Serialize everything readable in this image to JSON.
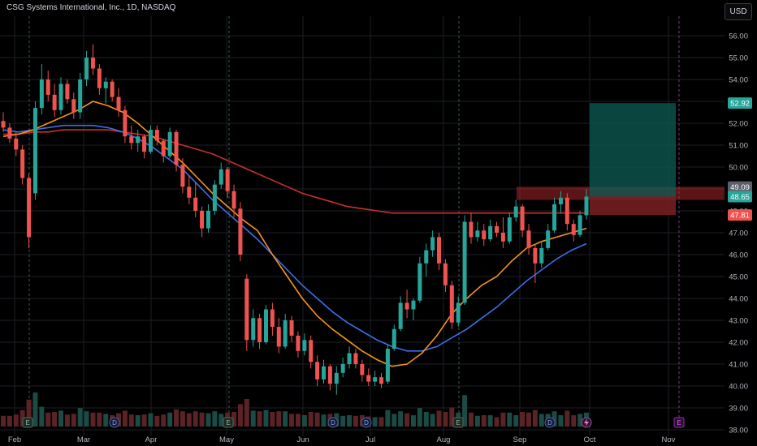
{
  "header": {
    "title": "CSG Systems International, Inc., 1D, NASDAQ",
    "currency": "USD"
  },
  "colors": {
    "background": "#000000",
    "up": "#26a69a",
    "down": "#ef5350",
    "ma_fast": "#f7931a",
    "ma_mid": "#3d6ee8",
    "ma_slow": "#c8312b",
    "grid": "#1c1f26",
    "target_zone": "#0e5c55",
    "stop_zone": "#7a2022"
  },
  "chart_data": {
    "type": "candlestick",
    "y_ticks": [
      "38.00",
      "39.00",
      "40.00",
      "41.00",
      "42.00",
      "43.00",
      "44.00",
      "45.00",
      "46.00",
      "47.00",
      "48.00",
      "49.00",
      "50.00",
      "51.00",
      "52.00",
      "53.00",
      "54.00",
      "55.00",
      "56.00"
    ],
    "ylim": [
      38.0,
      56.6
    ],
    "x_labels": [
      "Feb",
      "Mar",
      "Apr",
      "May",
      "Jun",
      "Jul",
      "Aug",
      "Sep",
      "Oct",
      "Nov"
    ],
    "price_labels": [
      {
        "text": "52.92",
        "value": 52.92,
        "color": "#26a69a"
      },
      {
        "text": "49.09",
        "value": 49.09,
        "color": "#5d606b"
      },
      {
        "text": "48.65",
        "value": 48.65,
        "color": "#26a69a"
      },
      {
        "text": "47.81",
        "value": 47.81,
        "color": "#ef5350"
      }
    ],
    "position_tool": {
      "entry": 48.65,
      "target": 52.92,
      "stop": 47.81
    },
    "resistance_zone": [
      48.5,
      49.1
    ],
    "events": [
      {
        "label": "E",
        "month": "Feb"
      },
      {
        "label": "D",
        "month": "Mar"
      },
      {
        "label": "E",
        "month": "May"
      },
      {
        "label": "D",
        "month": "Jun"
      },
      {
        "label": "D",
        "month": "Jun"
      },
      {
        "label": "E",
        "month": "Aug"
      },
      {
        "label": "D",
        "month": "Sep"
      },
      {
        "label": "E",
        "month": "Nov"
      }
    ],
    "volume_note": "volume histogram along bottom",
    "candles": [
      {
        "date": "Jan 22",
        "o": 52.1,
        "h": 52.5,
        "l": 51.6,
        "c": 51.8
      },
      {
        "date": "Jan 24",
        "o": 51.8,
        "h": 52.0,
        "l": 51.1,
        "c": 51.3
      },
      {
        "date": "Jan 26",
        "o": 51.3,
        "h": 51.6,
        "l": 50.5,
        "c": 50.8
      },
      {
        "date": "Jan 29",
        "o": 50.8,
        "h": 51.0,
        "l": 49.2,
        "c": 49.5
      },
      {
        "date": "Jan 31",
        "o": 49.5,
        "h": 49.7,
        "l": 46.3,
        "c": 46.8
      },
      {
        "date": "Feb 02",
        "o": 48.8,
        "h": 53.0,
        "l": 48.5,
        "c": 52.7
      },
      {
        "date": "Feb 05",
        "o": 52.7,
        "h": 54.7,
        "l": 52.4,
        "c": 54.0
      },
      {
        "date": "Feb 07",
        "o": 54.0,
        "h": 54.4,
        "l": 53.0,
        "c": 53.3
      },
      {
        "date": "Feb 09",
        "o": 53.3,
        "h": 53.8,
        "l": 52.3,
        "c": 52.6
      },
      {
        "date": "Feb 12",
        "o": 52.6,
        "h": 54.1,
        "l": 52.4,
        "c": 53.8
      },
      {
        "date": "Feb 14",
        "o": 53.8,
        "h": 54.0,
        "l": 52.9,
        "c": 53.1
      },
      {
        "date": "Feb 16",
        "o": 53.1,
        "h": 53.4,
        "l": 52.2,
        "c": 52.5
      },
      {
        "date": "Feb 20",
        "o": 52.5,
        "h": 54.3,
        "l": 52.2,
        "c": 54.0
      },
      {
        "date": "Feb 22",
        "o": 54.0,
        "h": 55.3,
        "l": 53.7,
        "c": 55.0
      },
      {
        "date": "Feb 26",
        "o": 55.0,
        "h": 55.6,
        "l": 54.2,
        "c": 54.5
      },
      {
        "date": "Feb 28",
        "o": 54.5,
        "h": 54.7,
        "l": 53.3,
        "c": 53.6
      },
      {
        "date": "Mar 01",
        "o": 53.6,
        "h": 54.1,
        "l": 52.9,
        "c": 53.9
      },
      {
        "date": "Mar 05",
        "o": 53.9,
        "h": 54.0,
        "l": 53.0,
        "c": 53.2
      },
      {
        "date": "Mar 07",
        "o": 53.2,
        "h": 53.6,
        "l": 52.3,
        "c": 52.6
      },
      {
        "date": "Mar 11",
        "o": 52.6,
        "h": 52.8,
        "l": 51.1,
        "c": 51.4
      },
      {
        "date": "Mar 13",
        "o": 51.4,
        "h": 51.9,
        "l": 50.8,
        "c": 51.1
      },
      {
        "date": "Mar 15",
        "o": 51.1,
        "h": 51.7,
        "l": 50.7,
        "c": 51.4
      },
      {
        "date": "Mar 19",
        "o": 51.4,
        "h": 51.5,
        "l": 50.4,
        "c": 50.7
      },
      {
        "date": "Mar 21",
        "o": 50.7,
        "h": 51.9,
        "l": 50.6,
        "c": 51.7
      },
      {
        "date": "Mar 25",
        "o": 51.7,
        "h": 51.9,
        "l": 51.0,
        "c": 51.2
      },
      {
        "date": "Mar 27",
        "o": 51.2,
        "h": 51.3,
        "l": 50.2,
        "c": 50.5
      },
      {
        "date": "Mar 29",
        "o": 50.5,
        "h": 51.8,
        "l": 50.4,
        "c": 51.6
      },
      {
        "date": "Apr 02",
        "o": 51.6,
        "h": 51.7,
        "l": 49.8,
        "c": 50.1
      },
      {
        "date": "Apr 04",
        "o": 50.1,
        "h": 50.4,
        "l": 48.8,
        "c": 49.1
      },
      {
        "date": "Apr 08",
        "o": 49.1,
        "h": 49.6,
        "l": 48.3,
        "c": 48.6
      },
      {
        "date": "Apr 10",
        "o": 48.6,
        "h": 49.3,
        "l": 47.7,
        "c": 48.0
      },
      {
        "date": "Apr 12",
        "o": 48.0,
        "h": 48.2,
        "l": 46.8,
        "c": 47.2
      },
      {
        "date": "Apr 16",
        "o": 47.2,
        "h": 48.3,
        "l": 47.0,
        "c": 48.0
      },
      {
        "date": "Apr 18",
        "o": 48.0,
        "h": 49.4,
        "l": 47.8,
        "c": 49.2
      },
      {
        "date": "Apr 22",
        "o": 49.2,
        "h": 50.2,
        "l": 49.0,
        "c": 49.9
      },
      {
        "date": "Apr 24",
        "o": 49.9,
        "h": 50.0,
        "l": 48.6,
        "c": 48.9
      },
      {
        "date": "Apr 26",
        "o": 48.9,
        "h": 49.2,
        "l": 47.7,
        "c": 48.1
      },
      {
        "date": "Apr 30",
        "o": 48.1,
        "h": 48.4,
        "l": 45.7,
        "c": 46.0
      },
      {
        "date": "May 02",
        "o": 44.9,
        "h": 45.1,
        "l": 41.6,
        "c": 42.1
      },
      {
        "date": "May 06",
        "o": 42.1,
        "h": 43.5,
        "l": 41.8,
        "c": 43.1
      },
      {
        "date": "May 08",
        "o": 43.1,
        "h": 43.3,
        "l": 41.7,
        "c": 42.0
      },
      {
        "date": "May 10",
        "o": 42.0,
        "h": 43.7,
        "l": 41.9,
        "c": 43.5
      },
      {
        "date": "May 14",
        "o": 43.5,
        "h": 43.8,
        "l": 42.3,
        "c": 42.7
      },
      {
        "date": "May 16",
        "o": 42.7,
        "h": 43.1,
        "l": 41.5,
        "c": 41.8
      },
      {
        "date": "May 20",
        "o": 41.8,
        "h": 43.3,
        "l": 41.7,
        "c": 43.0
      },
      {
        "date": "May 22",
        "o": 43.0,
        "h": 43.2,
        "l": 42.0,
        "c": 42.3
      },
      {
        "date": "May 24",
        "o": 42.3,
        "h": 42.5,
        "l": 41.3,
        "c": 41.6
      },
      {
        "date": "May 29",
        "o": 41.6,
        "h": 42.4,
        "l": 41.4,
        "c": 42.1
      },
      {
        "date": "May 31",
        "o": 42.1,
        "h": 42.3,
        "l": 40.8,
        "c": 41.1
      },
      {
        "date": "Jun 04",
        "o": 41.1,
        "h": 41.4,
        "l": 40.0,
        "c": 40.3
      },
      {
        "date": "Jun 06",
        "o": 40.3,
        "h": 41.2,
        "l": 40.1,
        "c": 40.9
      },
      {
        "date": "Jun 10",
        "o": 40.9,
        "h": 41.0,
        "l": 39.8,
        "c": 40.1
      },
      {
        "date": "Jun 12",
        "o": 40.1,
        "h": 40.9,
        "l": 39.6,
        "c": 40.6
      },
      {
        "date": "Jun 14",
        "o": 40.6,
        "h": 41.3,
        "l": 40.4,
        "c": 41.0
      },
      {
        "date": "Jun 18",
        "o": 41.0,
        "h": 41.8,
        "l": 40.8,
        "c": 41.5
      },
      {
        "date": "Jun 20",
        "o": 41.5,
        "h": 41.7,
        "l": 40.8,
        "c": 41.0
      },
      {
        "date": "Jun 24",
        "o": 41.0,
        "h": 41.2,
        "l": 40.2,
        "c": 40.5
      },
      {
        "date": "Jun 26",
        "o": 40.5,
        "h": 40.8,
        "l": 40.0,
        "c": 40.2
      },
      {
        "date": "Jun 28",
        "o": 40.2,
        "h": 40.7,
        "l": 40.0,
        "c": 40.4
      },
      {
        "date": "Jul 02",
        "o": 40.4,
        "h": 40.6,
        "l": 39.9,
        "c": 40.1
      },
      {
        "date": "Jul 05",
        "o": 40.2,
        "h": 41.9,
        "l": 40.1,
        "c": 41.7
      },
      {
        "date": "Jul 09",
        "o": 41.7,
        "h": 42.8,
        "l": 41.6,
        "c": 42.6
      },
      {
        "date": "Jul 11",
        "o": 42.6,
        "h": 44.1,
        "l": 42.5,
        "c": 43.8
      },
      {
        "date": "Jul 15",
        "o": 43.8,
        "h": 44.4,
        "l": 43.1,
        "c": 43.5
      },
      {
        "date": "Jul 17",
        "o": 43.5,
        "h": 44.0,
        "l": 43.0,
        "c": 43.9
      },
      {
        "date": "Jul 19",
        "o": 43.9,
        "h": 45.9,
        "l": 43.8,
        "c": 45.6
      },
      {
        "date": "Jul 23",
        "o": 45.6,
        "h": 46.5,
        "l": 45.0,
        "c": 46.2
      },
      {
        "date": "Jul 25",
        "o": 46.2,
        "h": 47.1,
        "l": 45.9,
        "c": 46.8
      },
      {
        "date": "Jul 29",
        "o": 46.8,
        "h": 47.0,
        "l": 45.3,
        "c": 45.6
      },
      {
        "date": "Jul 31",
        "o": 45.6,
        "h": 45.8,
        "l": 44.3,
        "c": 44.6
      },
      {
        "date": "Aug 02",
        "o": 44.6,
        "h": 44.8,
        "l": 42.6,
        "c": 42.9
      },
      {
        "date": "Aug 06",
        "o": 42.9,
        "h": 44.1,
        "l": 42.7,
        "c": 43.8
      },
      {
        "date": "Aug 08",
        "o": 43.8,
        "h": 47.8,
        "l": 43.7,
        "c": 47.5
      },
      {
        "date": "Aug 12",
        "o": 47.5,
        "h": 47.9,
        "l": 46.5,
        "c": 46.8
      },
      {
        "date": "Aug 14",
        "o": 46.8,
        "h": 47.5,
        "l": 46.6,
        "c": 47.1
      },
      {
        "date": "Aug 16",
        "o": 47.1,
        "h": 47.4,
        "l": 46.4,
        "c": 46.7
      },
      {
        "date": "Aug 20",
        "o": 46.7,
        "h": 47.6,
        "l": 46.6,
        "c": 47.3
      },
      {
        "date": "Aug 22",
        "o": 47.3,
        "h": 47.5,
        "l": 46.8,
        "c": 47.0
      },
      {
        "date": "Aug 26",
        "o": 47.0,
        "h": 47.7,
        "l": 46.3,
        "c": 46.6
      },
      {
        "date": "Aug 28",
        "o": 46.6,
        "h": 47.9,
        "l": 46.5,
        "c": 47.7
      },
      {
        "date": "Aug 30",
        "o": 47.7,
        "h": 48.5,
        "l": 47.5,
        "c": 48.2
      },
      {
        "date": "Sep 04",
        "o": 48.2,
        "h": 48.3,
        "l": 46.8,
        "c": 47.1
      },
      {
        "date": "Sep 06",
        "o": 47.1,
        "h": 47.4,
        "l": 46.0,
        "c": 46.3
      },
      {
        "date": "Sep 10",
        "o": 46.3,
        "h": 46.5,
        "l": 44.7,
        "c": 45.6
      },
      {
        "date": "Sep 12",
        "o": 45.6,
        "h": 46.6,
        "l": 45.4,
        "c": 46.3
      },
      {
        "date": "Sep 16",
        "o": 46.3,
        "h": 47.4,
        "l": 46.2,
        "c": 47.1
      },
      {
        "date": "Sep 18",
        "o": 47.1,
        "h": 48.6,
        "l": 47.0,
        "c": 48.3
      },
      {
        "date": "Sep 20",
        "o": 48.3,
        "h": 48.9,
        "l": 47.9,
        "c": 48.6
      },
      {
        "date": "Sep 24",
        "o": 48.6,
        "h": 48.8,
        "l": 47.1,
        "c": 47.4
      },
      {
        "date": "Sep 26",
        "o": 47.4,
        "h": 47.6,
        "l": 46.6,
        "c": 46.9
      },
      {
        "date": "Sep 27",
        "o": 46.9,
        "h": 48.0,
        "l": 46.8,
        "c": 47.8
      },
      {
        "date": "Sep 30",
        "o": 47.8,
        "h": 49.0,
        "l": 47.6,
        "c": 48.65
      }
    ],
    "ma_fast": [
      51.4,
      51.5,
      51.7,
      52.0,
      52.3,
      52.6,
      53.0,
      52.8,
      52.5,
      52.0,
      51.4,
      50.8,
      50.2,
      49.5,
      48.8,
      48.2,
      47.6,
      47.1,
      46.0,
      45.0,
      44.0,
      43.2,
      42.6,
      42.1,
      41.6,
      41.2,
      40.9,
      41.0,
      41.5,
      42.3,
      43.3,
      44.0,
      44.6,
      45.0,
      45.7,
      46.3,
      46.6,
      46.8,
      47.0,
      47.2
    ],
    "ma_mid": [
      51.7,
      51.6,
      51.7,
      51.8,
      51.9,
      51.9,
      51.9,
      51.8,
      51.6,
      51.3,
      50.9,
      50.4,
      49.9,
      49.2,
      48.5,
      47.9,
      47.3,
      46.7,
      46.0,
      45.3,
      44.6,
      44.0,
      43.4,
      42.9,
      42.5,
      42.1,
      41.8,
      41.6,
      41.6,
      41.8,
      42.2,
      42.6,
      43.1,
      43.6,
      44.2,
      44.8,
      45.3,
      45.8,
      46.2,
      46.5
    ],
    "ma_slow": [
      51.5,
      51.5,
      51.6,
      51.6,
      51.7,
      51.7,
      51.7,
      51.7,
      51.6,
      51.5,
      51.4,
      51.2,
      51.0,
      50.8,
      50.6,
      50.3,
      50.0,
      49.7,
      49.4,
      49.1,
      48.8,
      48.6,
      48.4,
      48.2,
      48.1,
      48.0,
      47.9,
      47.9,
      47.9,
      47.9,
      47.9,
      47.9,
      47.9,
      47.9,
      47.9,
      47.9,
      47.9,
      47.9,
      47.9,
      47.9
    ]
  }
}
